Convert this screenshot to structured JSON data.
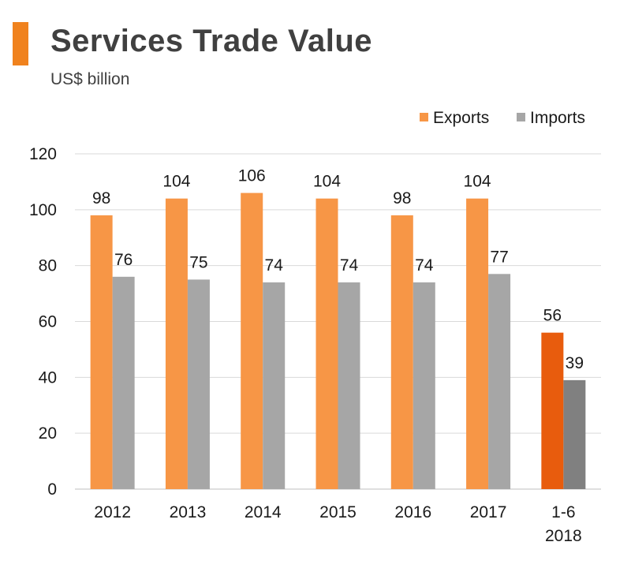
{
  "header": {
    "title": "Services Trade Value",
    "subtitle": "US$ billion",
    "accent_color": "#f0821e"
  },
  "chart_data": {
    "type": "bar",
    "title": "Services Trade Value",
    "subtitle": "US$ billion",
    "xlabel": "",
    "ylabel": "",
    "categories": [
      "2012",
      "2013",
      "2014",
      "2015",
      "2016",
      "2017",
      "1-6 2018"
    ],
    "category_lines": [
      [
        "2012"
      ],
      [
        "2013"
      ],
      [
        "2014"
      ],
      [
        "2015"
      ],
      [
        "2016"
      ],
      [
        "2017"
      ],
      [
        "1-6",
        "2018"
      ]
    ],
    "series": [
      {
        "name": "Exports",
        "values": [
          98,
          104,
          106,
          104,
          98,
          104,
          56
        ],
        "color": "#f79646",
        "highlight_color": "#e85c0d",
        "labels": [
          "98",
          "104",
          "106",
          "104",
          "98",
          "104",
          "56"
        ]
      },
      {
        "name": "Imports",
        "values": [
          76,
          75,
          74,
          74,
          74,
          77,
          39
        ],
        "color": "#a6a6a6",
        "highlight_color": "#808080",
        "labels": [
          "76",
          "75",
          "74",
          "74",
          "74",
          "77",
          "39"
        ]
      }
    ],
    "highlight_index": 6,
    "ylim": [
      0,
      120
    ],
    "yticks": [
      0,
      20,
      40,
      60,
      80,
      100,
      120
    ],
    "grid": true,
    "legend_position": "top-right"
  }
}
